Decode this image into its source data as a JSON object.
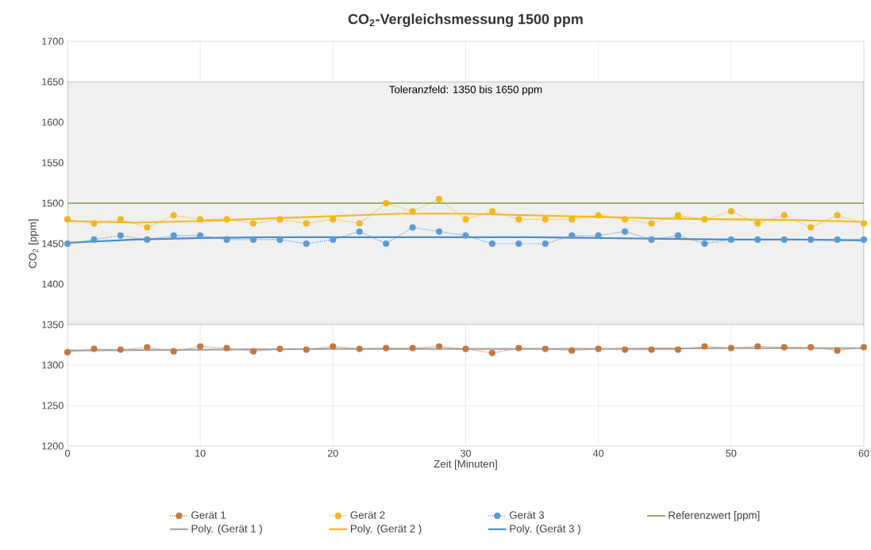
{
  "chart_data": {
    "type": "line",
    "title": "CO$_{2}$-Vergleichsmessung 1500 ppm",
    "xlabel": "Zeit [Minuten]",
    "ylabel": "CO$_{2}$ [ppm]",
    "x": [
      0,
      2,
      4,
      6,
      8,
      10,
      12,
      14,
      16,
      18,
      20,
      22,
      24,
      26,
      28,
      30,
      32,
      34,
      36,
      38,
      40,
      42,
      44,
      46,
      48,
      50,
      52,
      54,
      56,
      58,
      60
    ],
    "series": [
      {
        "name": "Gerät 1",
        "color": "#c5773e",
        "marker": "circle",
        "line_style": "dotted",
        "values": [
          1316,
          1320,
          1319,
          1322,
          1317,
          1323,
          1321,
          1317,
          1320,
          1319,
          1323,
          1320,
          1321,
          1321,
          1323,
          1320,
          1315,
          1321,
          1320,
          1318,
          1320,
          1319,
          1319,
          1319,
          1323,
          1321,
          1323,
          1322,
          1322,
          1318,
          1322
        ]
      },
      {
        "name": "Gerät 2",
        "color": "#f2b81c",
        "marker": "circle",
        "line_style": "dotted",
        "values": [
          1480,
          1475,
          1480,
          1470,
          1485,
          1480,
          1480,
          1475,
          1480,
          1475,
          1480,
          1475,
          1500,
          1490,
          1505,
          1480,
          1490,
          1480,
          1480,
          1480,
          1485,
          1480,
          1475,
          1485,
          1480,
          1490,
          1475,
          1485,
          1470,
          1485,
          1475
        ]
      },
      {
        "name": "Gerät 3",
        "color": "#5b9bd5",
        "marker": "circle",
        "line_style": "dotted",
        "values": [
          1450,
          1455,
          1460,
          1455,
          1460,
          1460,
          1455,
          1455,
          1455,
          1450,
          1455,
          1465,
          1450,
          1470,
          1465,
          1460,
          1450,
          1450,
          1450,
          1460,
          1460,
          1465,
          1455,
          1460,
          1450,
          1455,
          1455,
          1455,
          1455,
          1455,
          1455
        ]
      },
      {
        "name": "Poly. (Gerät 1 )",
        "color": "#a5a5a5",
        "marker": "none",
        "line_style": "solid",
        "x": [
          0,
          10,
          20,
          30,
          40,
          50,
          60
        ],
        "values": [
          1318,
          1319,
          1320,
          1320,
          1320,
          1321,
          1321
        ]
      },
      {
        "name": "Poly. (Gerät 2 )",
        "color": "#f2b81c",
        "marker": "none",
        "line_style": "solid",
        "x": [
          0,
          5,
          10,
          15,
          20,
          25,
          30,
          35,
          40,
          45,
          50,
          55,
          60
        ],
        "values": [
          1478,
          1476,
          1478,
          1481,
          1484,
          1487,
          1487,
          1485,
          1483,
          1481,
          1480,
          1479,
          1477
        ]
      },
      {
        "name": "Poly. (Gerät 3 )",
        "color": "#4a8ccc",
        "marker": "none",
        "line_style": "solid",
        "x": [
          0,
          5,
          10,
          15,
          20,
          25,
          30,
          35,
          40,
          45,
          50,
          55,
          60
        ],
        "values": [
          1451,
          1455,
          1457,
          1458,
          1458,
          1458,
          1458,
          1458,
          1457,
          1456,
          1455,
          1455,
          1454
        ]
      }
    ],
    "ref_lines": [
      {
        "axis": "y",
        "value": 1500,
        "label": "Referenzwert [ppm]",
        "color": "#70ad47"
      }
    ],
    "bands": [
      {
        "axis": "y",
        "from": 1350,
        "to": 1650,
        "label": "Toleranzfeld: 1350 bis 1650 ppm",
        "color": "#f0f0f0"
      }
    ],
    "xlim": [
      0,
      60
    ],
    "ylim": [
      1200,
      1700
    ],
    "xticks": [
      0,
      10,
      20,
      30,
      40,
      50,
      60
    ],
    "yticks": [
      1200,
      1250,
      1300,
      1350,
      1400,
      1450,
      1500,
      1550,
      1600,
      1650,
      1700
    ],
    "grid": true,
    "legend": "bottom"
  }
}
